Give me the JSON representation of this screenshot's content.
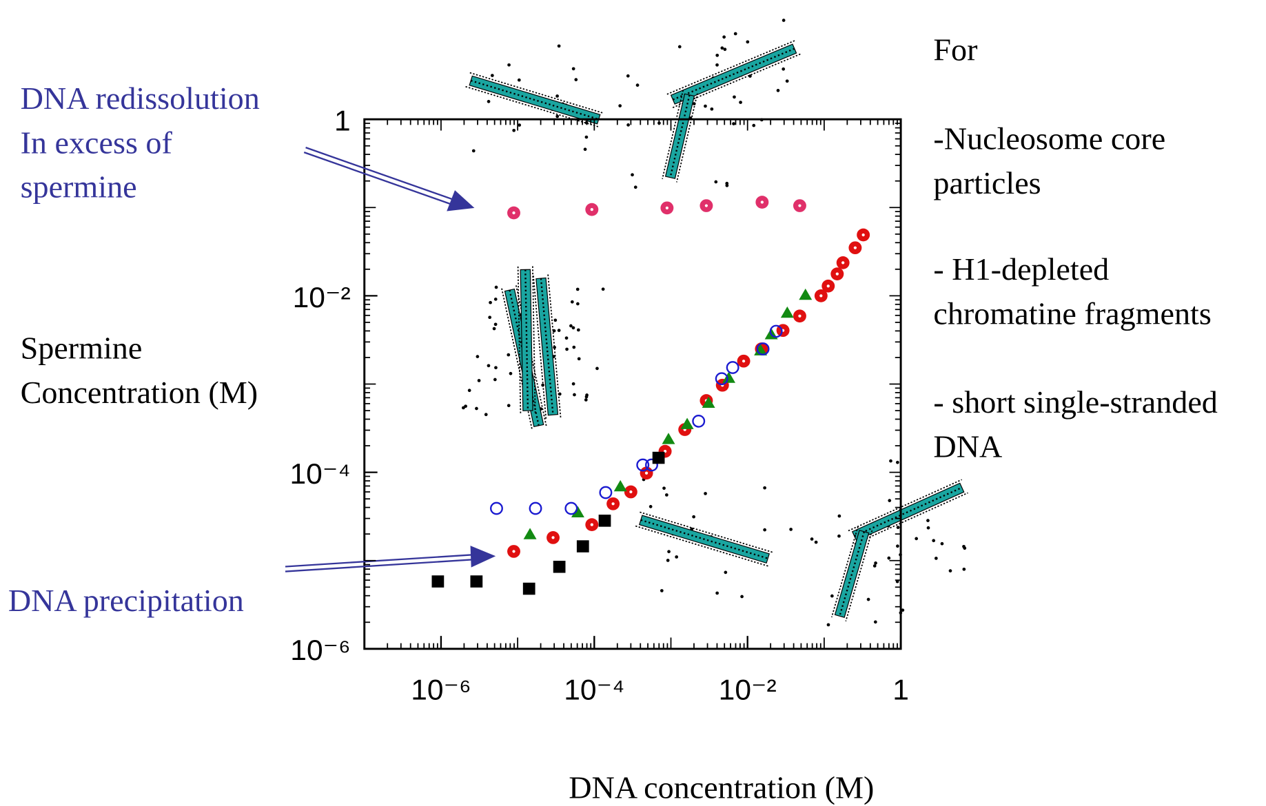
{
  "chart_data": {
    "type": "scatter",
    "x_label": "DNA concentration (M)",
    "y_label": [
      "Spermine",
      "Concentration (M)"
    ],
    "annotations": {
      "redissolution": [
        "DNA redissolution",
        "In excess of",
        "spermine"
      ],
      "precipitation": "DNA precipitation"
    },
    "side_text": [
      "For",
      "-Nucleosome core",
      "particles",
      "- H1-depleted",
      "chromatine fragments",
      "- short single-stranded",
      "DNA"
    ],
    "xscale": "log",
    "yscale": "log",
    "xlim": [
      1e-07,
      1
    ],
    "ylim": [
      1e-06,
      1
    ],
    "xticks": [
      {
        "value": 1e-06,
        "label": "10⁻⁶"
      },
      {
        "value": 0.0001,
        "label": "10⁻⁴"
      },
      {
        "value": 0.01,
        "label": "10⁻²"
      },
      1
    ],
    "yticks": [
      {
        "value": 1e-06,
        "label": "10⁻⁶"
      },
      {
        "value": 0.0001,
        "label": "10⁻⁴"
      },
      {
        "value": 0.01,
        "label": "10⁻²"
      },
      1
    ],
    "series": [
      {
        "color": "#e0306a",
        "marker": "circle",
        "x": [
          8.9e-06,
          9.3e-05,
          0.00089,
          0.0029,
          0.0155,
          0.048
        ],
        "values": [
          0.087,
          0.095,
          0.099,
          0.105,
          0.115,
          0.105
        ]
      },
      {
        "color": "#e01010",
        "marker": "circle",
        "x": [
          8.9e-06,
          2.9e-05,
          9.3e-05,
          0.000176,
          0.0003,
          0.00048,
          0.00084,
          0.00152,
          0.0029,
          0.0047,
          0.0089,
          0.0152,
          0.029,
          0.048,
          0.091,
          0.113,
          0.148,
          0.176,
          0.254,
          0.324
        ],
        "values": [
          1.27e-05,
          1.82e-05,
          2.55e-05,
          4.4e-05,
          6e-05,
          9.8e-05,
          0.000173,
          0.000305,
          0.00065,
          0.00097,
          0.00182,
          0.0025,
          0.00405,
          0.0059,
          0.01,
          0.0129,
          0.0177,
          0.0237,
          0.035,
          0.049
        ]
      },
      {
        "color": "#128a12",
        "marker": "triangle",
        "x": [
          1.45e-05,
          6.1e-05,
          0.000219,
          0.00093,
          0.00163,
          0.0031,
          0.0057,
          0.0148,
          0.0204,
          0.033,
          0.057
        ],
        "values": [
          1.98e-05,
          3.5e-05,
          6.9e-05,
          0.000237,
          0.00035,
          0.00061,
          0.00117,
          0.0024,
          0.00365,
          0.0064,
          0.0102
        ]
      },
      {
        "color": "#1a1ad0",
        "marker": "open-circle",
        "x": [
          5.3e-06,
          1.71e-05,
          5e-05,
          0.000141,
          0.00043,
          0.00056,
          0.0023,
          0.0046,
          0.0064,
          0.0159,
          0.0236
        ],
        "values": [
          3.9e-05,
          3.9e-05,
          3.9e-05,
          5.9e-05,
          0.000121,
          0.000121,
          0.00038,
          0.00115,
          0.00154,
          0.0025,
          0.00396
        ]
      },
      {
        "color": "#000000",
        "marker": "square",
        "x": [
          9.1e-07,
          2.9e-06,
          1.41e-05,
          3.5e-05,
          7.1e-05,
          0.000137,
          0.00069
        ],
        "values": [
          5.8e-06,
          5.8e-06,
          4.8e-06,
          8.5e-06,
          1.45e-05,
          2.83e-05,
          0.000146
        ]
      }
    ]
  }
}
